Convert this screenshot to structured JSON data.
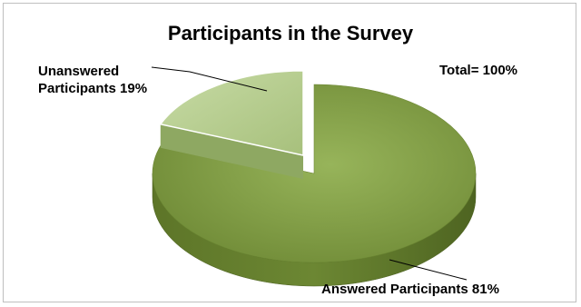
{
  "chart_data": {
    "type": "pie",
    "title": "Participants in the Survey",
    "annotation": "Total= 100%",
    "slices": [
      {
        "label": "Answered Participants",
        "value": 81,
        "value_label": "81%",
        "color": "#7f9a3f"
      },
      {
        "label": "Unanswered Participants",
        "value": 19,
        "value_label": "19%",
        "color": "#b3cc8c"
      }
    ],
    "unanswered_label_lines": [
      "Unanswered",
      "Participants 19%"
    ],
    "answered_label_text": "Answered Participants 81%",
    "exploded": "Unanswered Participants",
    "style": "3d"
  }
}
